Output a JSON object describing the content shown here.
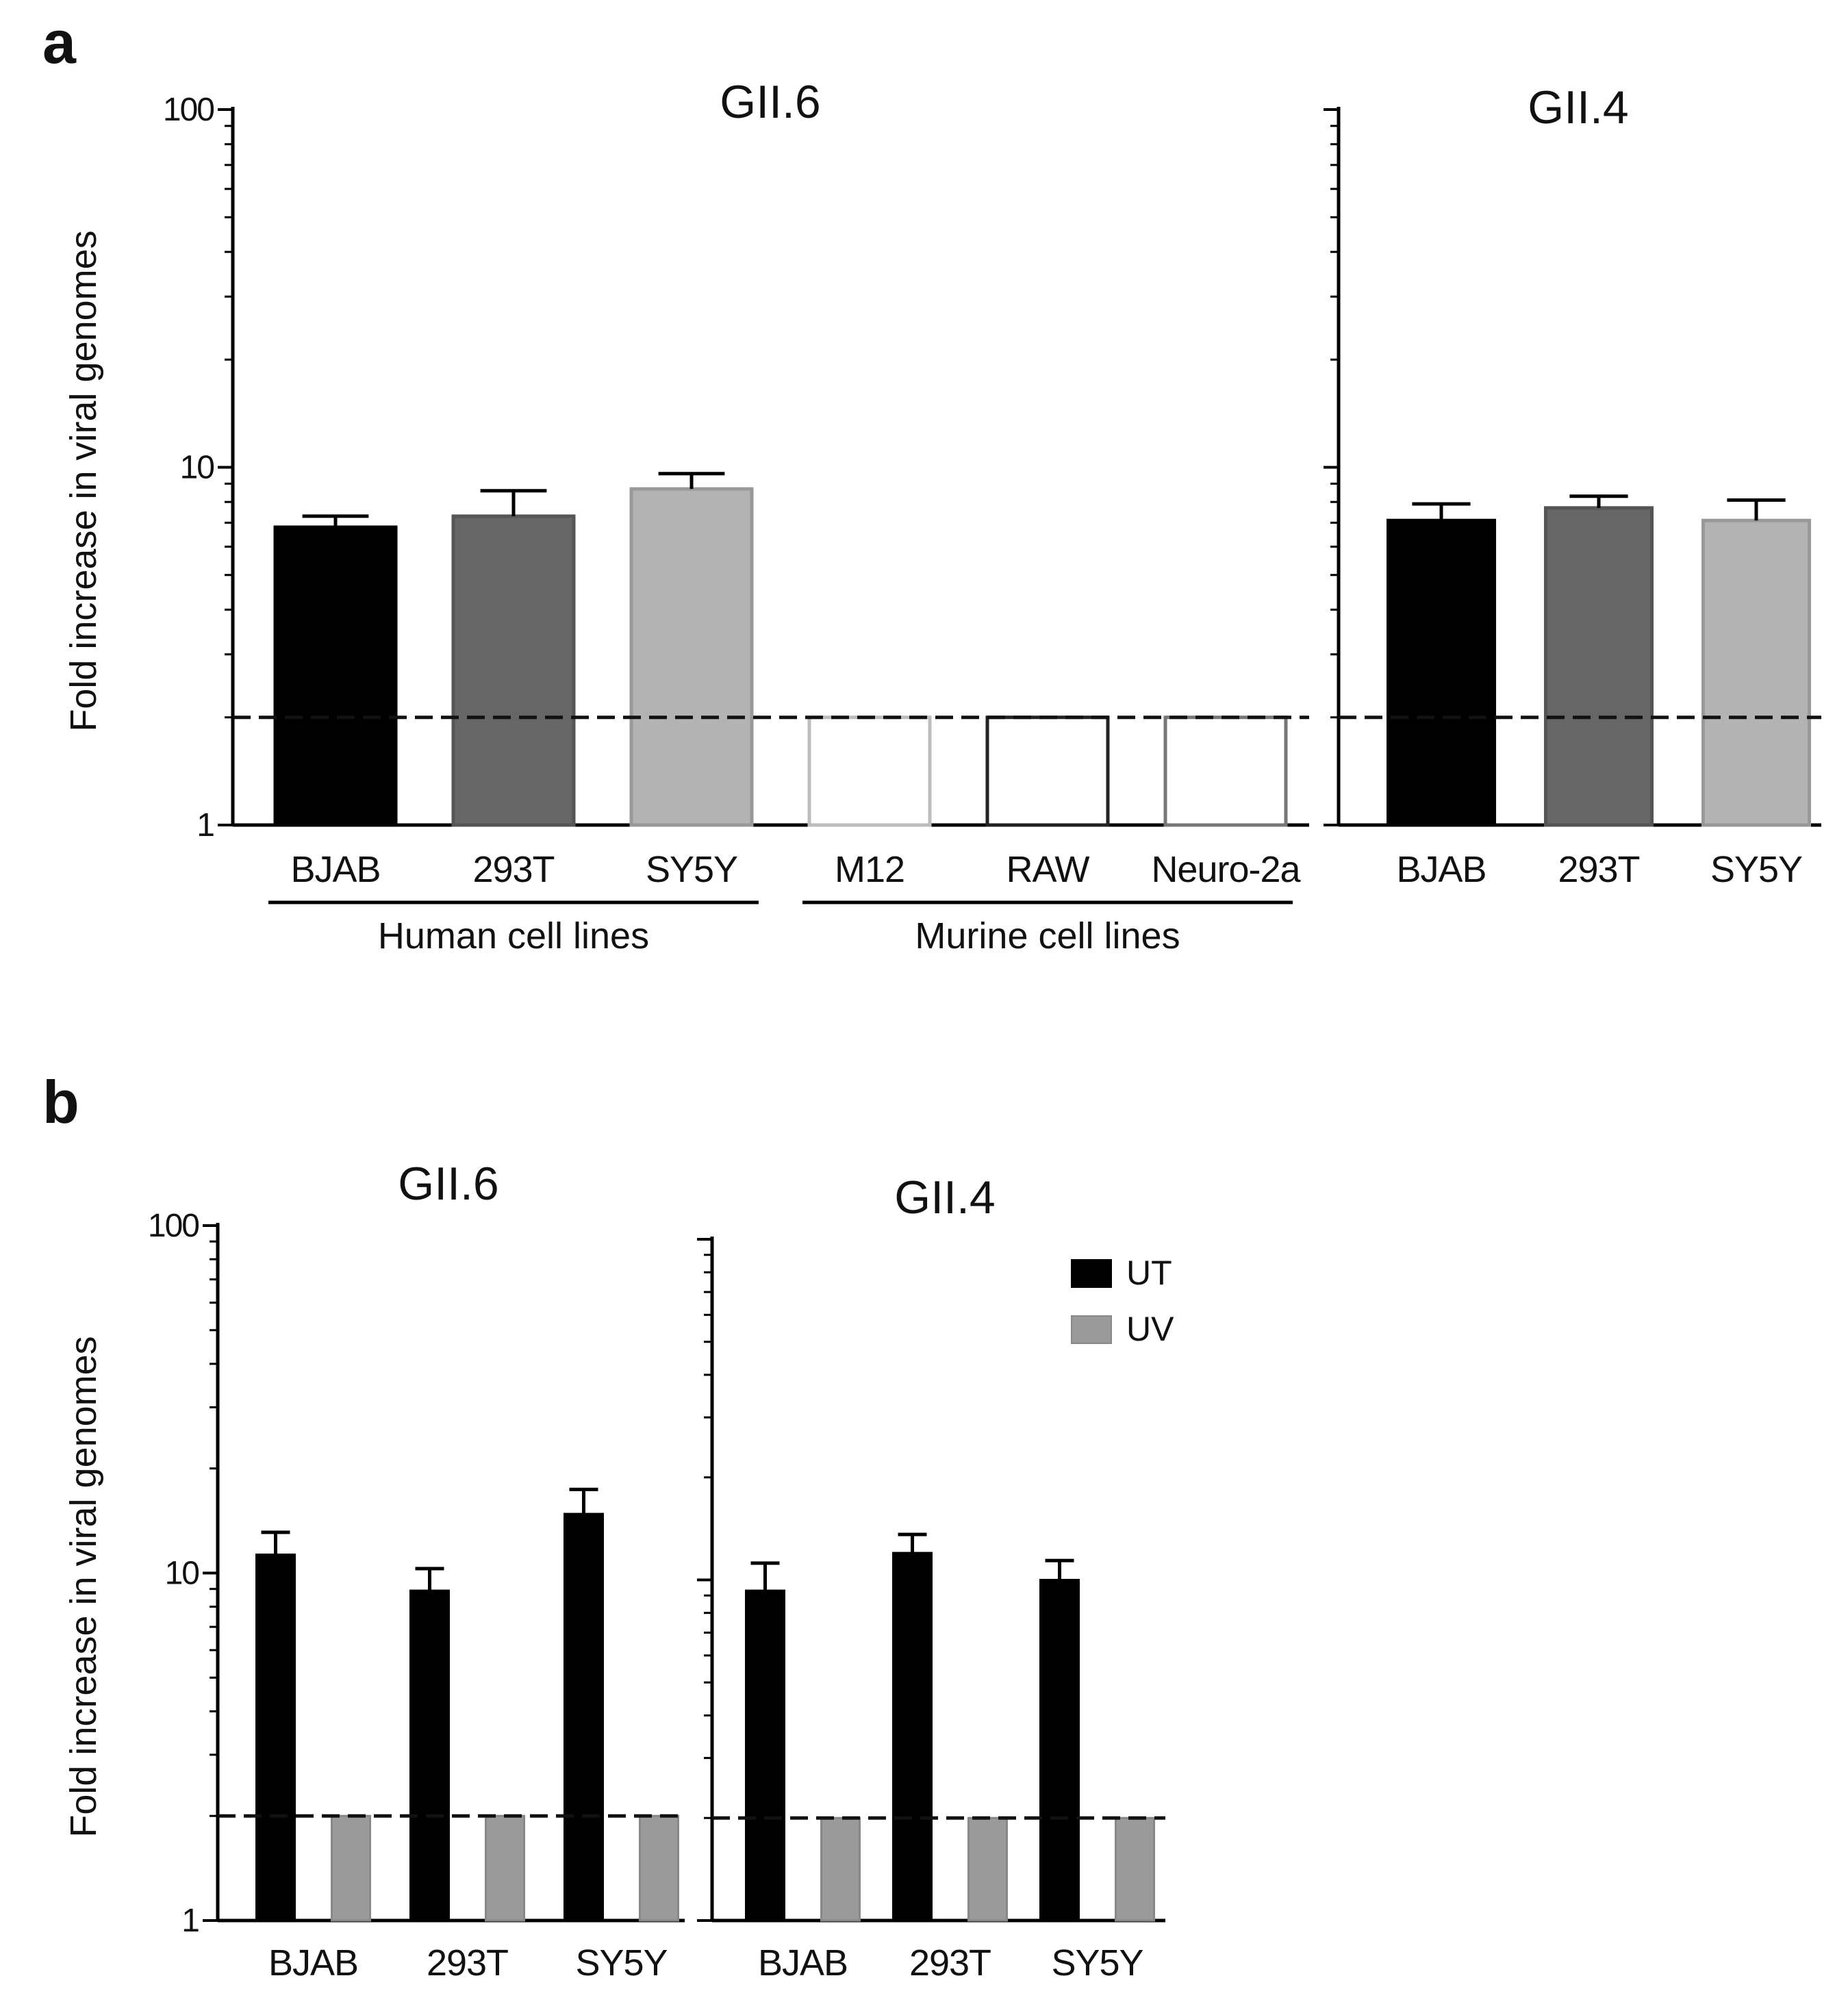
{
  "figure": {
    "panel_a_letter": "a",
    "panel_b_letter": "b",
    "threshold_value": 2,
    "colors": {
      "black": "#000000",
      "dark_gray": "#666666",
      "light_gray": "#b3b3b3",
      "uv_gray": "#9a9a9a",
      "empty_edge": "#bdbdbd",
      "empty_edge_dark": "#555555"
    }
  },
  "chart_data": [
    {
      "id": "a_gii6",
      "type": "bar",
      "title": "GII.6",
      "ylabel": "Fold increase in viral genomes",
      "yscale": "log",
      "ylim": [
        1,
        100
      ],
      "yticks": [
        "1",
        "10",
        "100"
      ],
      "threshold": 2,
      "categories": [
        "BJAB",
        "293T",
        "SY5Y",
        "M12",
        "RAW",
        "Neuro-2a"
      ],
      "values": [
        6.8,
        7.3,
        8.7,
        2,
        2,
        2
      ],
      "errors": [
        0.5,
        1.3,
        0.9,
        0,
        0,
        0
      ],
      "fills": [
        "#000000",
        "#666666",
        "#b3b3b3",
        "none",
        "none",
        "none"
      ],
      "strokes": [
        "#000000",
        "#555555",
        "#999999",
        "#bdbdbd",
        "#222222",
        "#777777"
      ],
      "groups": [
        {
          "label": "Human cell lines",
          "from": 0,
          "to": 2
        },
        {
          "label": "Murine cell lines",
          "from": 3,
          "to": 5
        }
      ]
    },
    {
      "id": "a_gii4",
      "type": "bar",
      "title": "GII.4",
      "yscale": "log",
      "ylim": [
        1,
        100
      ],
      "threshold": 2,
      "categories": [
        "BJAB",
        "293T",
        "SY5Y"
      ],
      "values": [
        7.1,
        7.7,
        7.1
      ],
      "errors": [
        0.8,
        0.6,
        1.0
      ],
      "fills": [
        "#000000",
        "#666666",
        "#b3b3b3"
      ],
      "strokes": [
        "#000000",
        "#555555",
        "#999999"
      ]
    },
    {
      "id": "b_gii6",
      "type": "bar",
      "title": "GII.6",
      "ylabel": "Fold increase in viral genomes",
      "yscale": "log",
      "ylim": [
        1,
        100
      ],
      "yticks": [
        "1",
        "10",
        "100"
      ],
      "threshold": 2,
      "categories": [
        "BJAB",
        "293T",
        "SY5Y"
      ],
      "series": [
        {
          "name": "UT",
          "values": [
            11.3,
            8.9,
            14.8
          ],
          "errors": [
            1.8,
            1.4,
            2.6
          ]
        },
        {
          "name": "UV",
          "values": [
            2,
            2,
            2
          ],
          "errors": [
            0,
            0,
            0
          ]
        }
      ]
    },
    {
      "id": "b_gii4",
      "type": "bar",
      "title": "GII.4",
      "yscale": "log",
      "ylim": [
        1,
        100
      ],
      "threshold": 2,
      "categories": [
        "BJAB",
        "293T",
        "SY5Y"
      ],
      "series": [
        {
          "name": "UT",
          "values": [
            9.3,
            12.0,
            10.0
          ],
          "errors": [
            1.9,
            1.6,
            1.4
          ]
        },
        {
          "name": "UV",
          "values": [
            2,
            2,
            2
          ],
          "errors": [
            0,
            0,
            0
          ]
        }
      ],
      "legend": [
        {
          "label": "UT",
          "color": "#000000"
        },
        {
          "label": "UV",
          "color": "#9a9a9a"
        }
      ]
    }
  ]
}
